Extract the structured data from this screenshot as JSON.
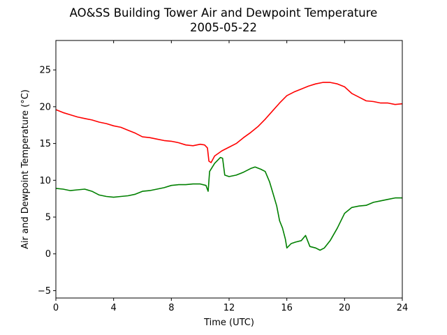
{
  "chart_data": {
    "type": "line",
    "title": "AO&SS Building Tower Air and Dewpoint Temperature",
    "subtitle": "2005-05-22",
    "xlabel": "Time (UTC)",
    "ylabel": "Air and Dewpoint Temperature (°C)",
    "xlim": [
      0,
      24
    ],
    "ylim": [
      -6,
      29
    ],
    "xticks": [
      0,
      4,
      8,
      12,
      16,
      20,
      24
    ],
    "yticks": [
      -5,
      0,
      5,
      10,
      15,
      20,
      25
    ],
    "grid": false,
    "series": [
      {
        "color": "#ff0000",
        "x": [
          0,
          0.5,
          1,
          1.5,
          2,
          2.5,
          3,
          3.5,
          4,
          4.5,
          5,
          5.5,
          6,
          6.5,
          7,
          7.5,
          8,
          8.5,
          9,
          9.5,
          10,
          10.3,
          10.5,
          10.6,
          10.75,
          11,
          11.5,
          12,
          12.5,
          13,
          13.5,
          14,
          14.5,
          15,
          15.5,
          16,
          16.5,
          17,
          17.5,
          18,
          18.5,
          19,
          19.5,
          20,
          20.5,
          21,
          21.5,
          22,
          22.5,
          23,
          23.5,
          24
        ],
        "y": [
          19.6,
          19.2,
          18.9,
          18.6,
          18.4,
          18.2,
          17.9,
          17.7,
          17.4,
          17.2,
          16.8,
          16.4,
          15.9,
          15.8,
          15.6,
          15.4,
          15.3,
          15.1,
          14.8,
          14.7,
          14.9,
          14.8,
          14.4,
          12.6,
          12.4,
          13.3,
          14.0,
          14.5,
          15.0,
          15.8,
          16.5,
          17.3,
          18.3,
          19.4,
          20.5,
          21.5,
          22.0,
          22.4,
          22.8,
          23.1,
          23.3,
          23.3,
          23.1,
          22.7,
          21.8,
          21.3,
          20.8,
          20.7,
          20.5,
          20.5,
          20.3,
          20.4
        ]
      },
      {
        "color": "#008000",
        "x": [
          0,
          0.5,
          1,
          1.5,
          2,
          2.5,
          3,
          3.5,
          4,
          4.5,
          5,
          5.5,
          6,
          6.5,
          7,
          7.5,
          8,
          8.5,
          9,
          9.5,
          10,
          10.4,
          10.55,
          10.65,
          11,
          11.4,
          11.55,
          11.7,
          12,
          12.5,
          13,
          13.5,
          13.8,
          14.2,
          14.5,
          14.8,
          15,
          15.3,
          15.5,
          15.7,
          15.9,
          16,
          16.3,
          16.6,
          17,
          17.3,
          17.6,
          18,
          18.3,
          18.6,
          19,
          19.5,
          20,
          20.5,
          21,
          21.5,
          22,
          22.5,
          23,
          23.5,
          24
        ],
        "y": [
          8.9,
          8.8,
          8.6,
          8.7,
          8.8,
          8.5,
          8.0,
          7.8,
          7.7,
          7.8,
          7.9,
          8.1,
          8.5,
          8.6,
          8.8,
          9.0,
          9.3,
          9.4,
          9.4,
          9.5,
          9.5,
          9.3,
          8.5,
          11.2,
          12.3,
          13.1,
          13.0,
          10.7,
          10.5,
          10.7,
          11.1,
          11.6,
          11.8,
          11.5,
          11.2,
          9.8,
          8.5,
          6.5,
          4.5,
          3.5,
          2.0,
          0.8,
          1.4,
          1.6,
          1.8,
          2.5,
          1.0,
          0.8,
          0.5,
          0.8,
          1.8,
          3.5,
          5.5,
          6.3,
          6.5,
          6.6,
          7.0,
          7.2,
          7.4,
          7.6,
          7.6
        ]
      }
    ]
  }
}
